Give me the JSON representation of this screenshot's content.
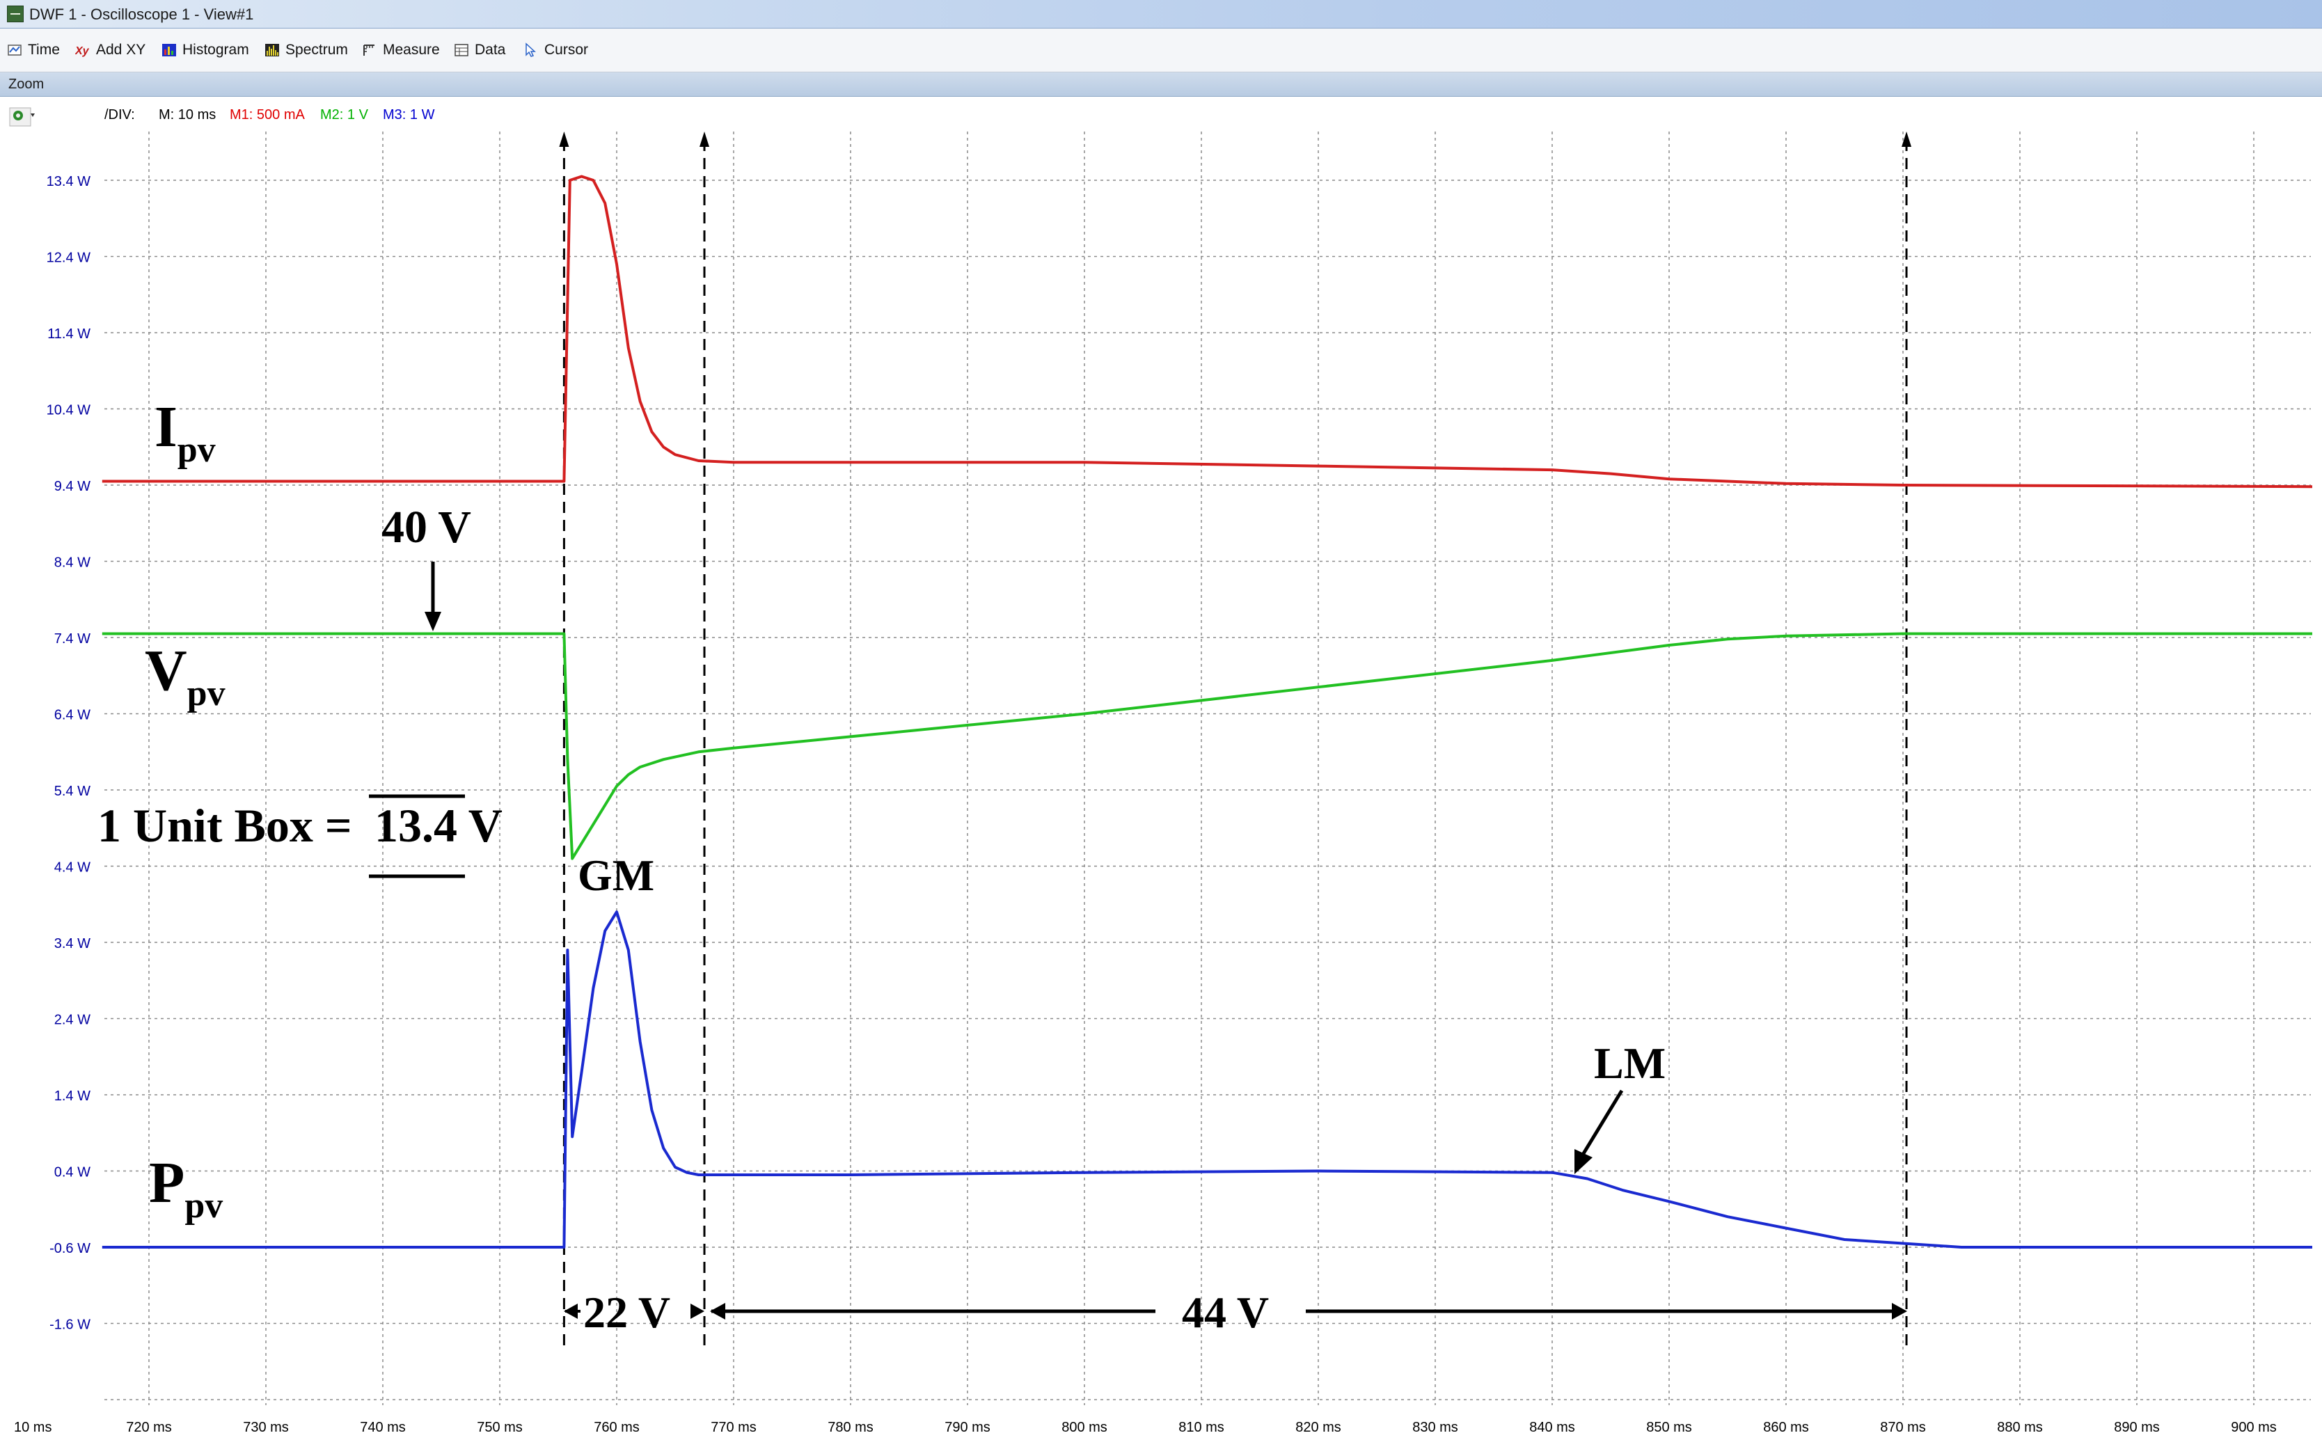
{
  "window": {
    "title": "DWF 1 - Oscilloscope 1 - View#1"
  },
  "toolbar": {
    "items": [
      {
        "label": "Time",
        "icon": "time-icon"
      },
      {
        "label": "Add XY",
        "icon": "add-xy-icon"
      },
      {
        "label": "Histogram",
        "icon": "histogram-icon"
      },
      {
        "label": "Spectrum",
        "icon": "spectrum-icon"
      },
      {
        "label": "Measure",
        "icon": "measure-icon"
      },
      {
        "label": "Data",
        "icon": "data-icon"
      },
      {
        "label": "Cursor",
        "icon": "cursor-icon"
      }
    ]
  },
  "zoom": {
    "label": "Zoom"
  },
  "div_readout": {
    "prefix": "/DIV:",
    "m": "M: 10 ms",
    "m1": "M1: 500 mA",
    "m2": "M2: 1 V",
    "m3": "M3: 1 W"
  },
  "colors": {
    "m": "#000000",
    "m1": "#e00000",
    "m2": "#00b000",
    "m3": "#0000d0",
    "ipv": "#d42020",
    "vpv": "#22c022",
    "ppv": "#1a2ad0",
    "axis_label": "#0000a0"
  },
  "chart_data": {
    "type": "line",
    "xlabel": "",
    "ylabel": "",
    "x_ticks": [
      "720 ms",
      "730 ms",
      "740 ms",
      "750 ms",
      "760 ms",
      "770 ms",
      "780 ms",
      "790 ms",
      "800 ms",
      "810 ms",
      "820 ms",
      "830 ms",
      "840 ms",
      "850 ms",
      "860 ms",
      "870 ms",
      "880 ms",
      "890 ms",
      "900 ms"
    ],
    "x_first_label": "10 ms",
    "y_ticks": [
      "13.4 W",
      "12.4 W",
      "11.4 W",
      "10.4 W",
      "9.4 W",
      "8.4 W",
      "7.4 W",
      "6.4 W",
      "5.4 W",
      "4.4 W",
      "3.4 W",
      "2.4 W",
      "1.4 W",
      "0.4 W",
      "-0.6 W",
      "-1.6 W"
    ],
    "xlim": [
      716,
      905
    ],
    "ylim": [
      -2.6,
      14.0
    ],
    "grid": true,
    "series": [
      {
        "name": "Ipv",
        "x": [
          716,
          755.5,
          756,
          757,
          758,
          759,
          760,
          761,
          762,
          763,
          764,
          765,
          767,
          770,
          780,
          800,
          820,
          840,
          845,
          850,
          860,
          870,
          905
        ],
        "y": [
          9.45,
          9.45,
          13.4,
          13.45,
          13.4,
          13.1,
          12.3,
          11.2,
          10.5,
          10.1,
          9.9,
          9.8,
          9.72,
          9.7,
          9.7,
          9.7,
          9.65,
          9.6,
          9.55,
          9.48,
          9.42,
          9.4,
          9.38
        ]
      },
      {
        "name": "Vpv",
        "x": [
          716,
          755.5,
          755.8,
          756.2,
          757,
          758,
          759,
          760,
          761,
          762,
          764,
          767,
          770,
          780,
          800,
          820,
          840,
          850,
          855,
          860,
          870,
          905
        ],
        "y": [
          7.45,
          7.45,
          5.8,
          4.5,
          4.7,
          4.95,
          5.2,
          5.45,
          5.6,
          5.7,
          5.8,
          5.9,
          5.95,
          6.1,
          6.4,
          6.75,
          7.1,
          7.3,
          7.38,
          7.42,
          7.45,
          7.45
        ]
      },
      {
        "name": "Ppv",
        "x": [
          716,
          755.5,
          755.8,
          756.2,
          757,
          758,
          759,
          760,
          761,
          762,
          763,
          764,
          765,
          766,
          767,
          770,
          780,
          800,
          820,
          840,
          843,
          846,
          850,
          855,
          860,
          865,
          870,
          875,
          905
        ],
        "y": [
          -0.6,
          -0.6,
          3.3,
          0.85,
          1.7,
          2.8,
          3.55,
          3.8,
          3.3,
          2.1,
          1.2,
          0.7,
          0.45,
          0.38,
          0.35,
          0.35,
          0.35,
          0.38,
          0.4,
          0.38,
          0.3,
          0.15,
          0.0,
          -0.2,
          -0.35,
          -0.5,
          -0.55,
          -0.6,
          -0.6
        ]
      }
    ],
    "annotations": {
      "ipv_label": "I",
      "ipv_sub": "pv",
      "vpv_label": "V",
      "vpv_sub": "pv",
      "ppv_label": "P",
      "ppv_sub": "pv",
      "v40": "40 V",
      "unit_box": "1 Unit Box =",
      "unit_box_value": "13.4 V",
      "gm": "GM",
      "lm": "LM",
      "span1": "22 V",
      "span2": "44 V"
    },
    "markers_x": [
      755.5,
      767.5,
      870.3
    ]
  }
}
